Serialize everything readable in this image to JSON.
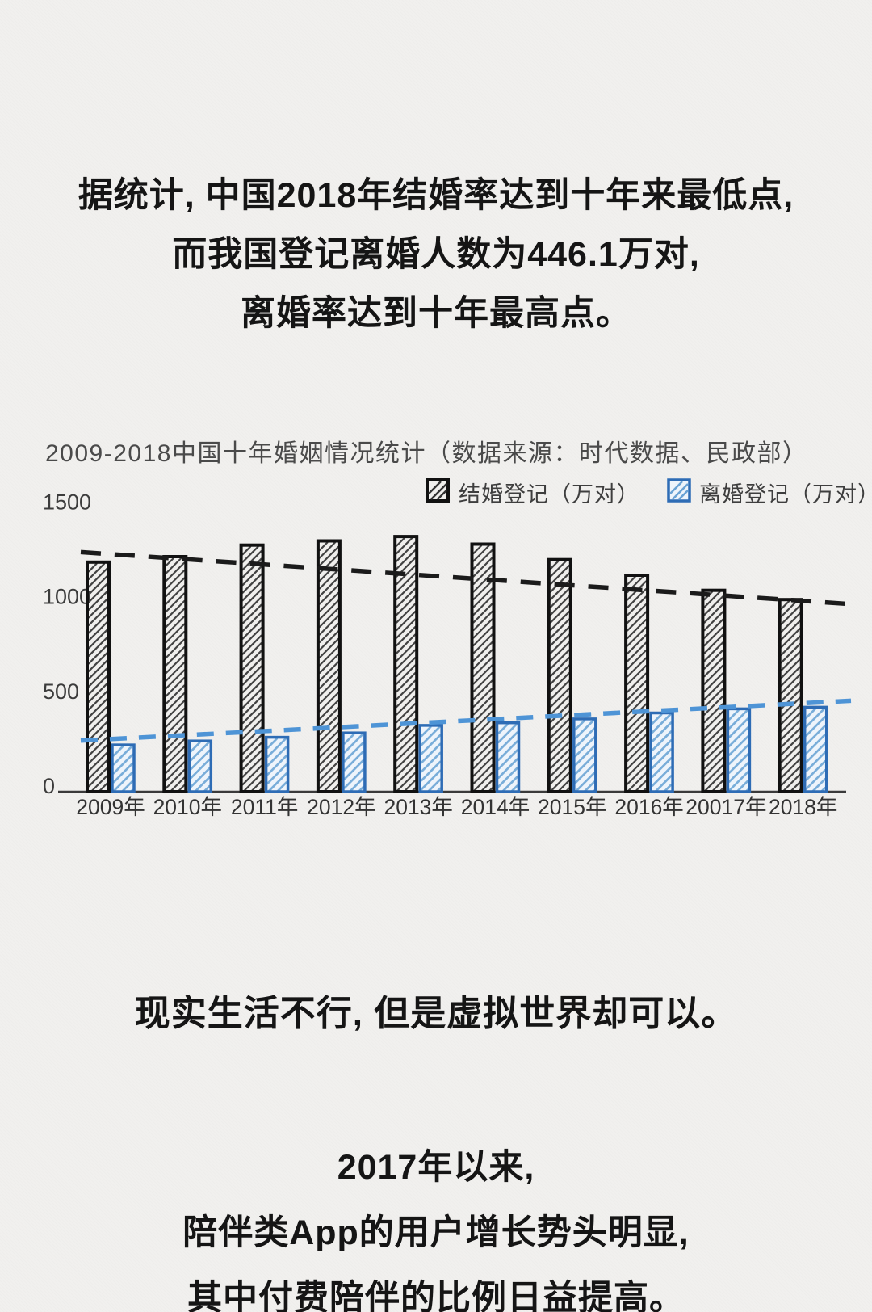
{
  "page": {
    "background_color": "#f1f0ee",
    "text_color": "#151515"
  },
  "headline": {
    "line1": "据统计, 中国2018年结婚率达到十年来最低点,",
    "line2": "而我国登记离婚人数为446.1万对,",
    "line3": "离婚率达到十年最高点。"
  },
  "chart_data": {
    "type": "bar",
    "title": "2009-2018中国十年婚姻情况统计（数据来源：时代数据、民政部）",
    "categories": [
      "2009年",
      "2010年",
      "2011年",
      "2012年",
      "2013年",
      "2014年",
      "2015年",
      "2016年",
      "20017年",
      "2018年"
    ],
    "series": [
      {
        "name": "结婚登记（万对）",
        "border_color": "#111111",
        "hatch_color": "#424242",
        "fill": "none",
        "values": [
          1212,
          1241,
          1302,
          1324,
          1347,
          1307,
          1225,
          1143,
          1063,
          1014
        ]
      },
      {
        "name": "离婚登记（万对）",
        "border_color": "#2e6cb5",
        "hatch_color": "#79add9",
        "fill": "#eef4fb",
        "values": [
          246.8,
          267.8,
          287.4,
          310.4,
          350.0,
          363.7,
          384.1,
          415.8,
          437.4,
          446.1
        ]
      }
    ],
    "trendlines": [
      {
        "series": "结婚登记",
        "style": "dashed",
        "color": "#1b1b1b",
        "start_value": 1265,
        "end_value": 990
      },
      {
        "series": "离婚登记",
        "style": "dashed",
        "color": "#4e94d6",
        "start_value": 270,
        "end_value": 480
      }
    ],
    "ylim": [
      0,
      1500
    ],
    "yticks": [
      0,
      500,
      1000,
      1500
    ],
    "legend_position": "top",
    "grid": false
  },
  "body_text": {
    "mid": "现实生活不行, 但是虚拟世界却可以。",
    "bottom1": "2017年以来,",
    "bottom2": "陪伴类App的用户增长势头明显,",
    "bottom3": "其中付费陪伴的比例日益提高。"
  }
}
